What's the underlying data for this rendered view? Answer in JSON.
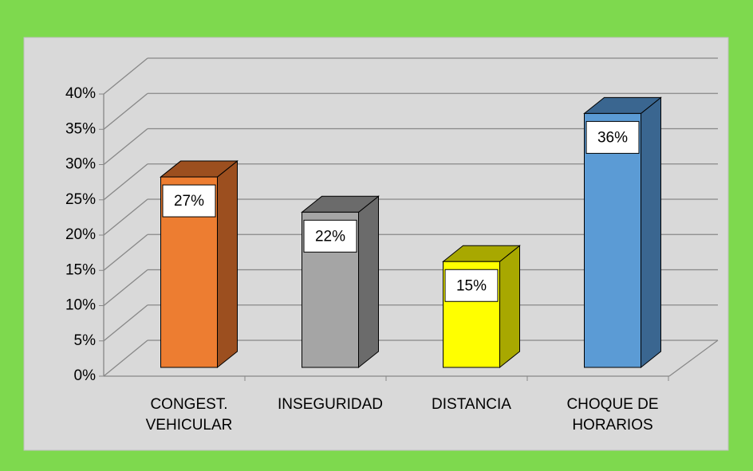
{
  "chart_data": {
    "type": "bar3d",
    "categories": [
      "CONGEST. VEHICULAR",
      "INSEGURIDAD",
      "DISTANCIA",
      "CHOQUE DE HORARIOS"
    ],
    "values": [
      27,
      22,
      15,
      36
    ],
    "value_labels": [
      "27%",
      "22%",
      "15%",
      "36%"
    ],
    "colors": [
      "#ed7d31",
      "#a5a5a5",
      "#ffff00",
      "#5b9bd5"
    ],
    "side_colors": [
      "#9c4f1f",
      "#6b6b6b",
      "#a8a800",
      "#3a6690"
    ],
    "ylim": [
      0,
      40
    ],
    "yticks": [
      {
        "value": 0,
        "label": "0%"
      },
      {
        "value": 5,
        "label": "5%"
      },
      {
        "value": 10,
        "label": "10%"
      },
      {
        "value": 15,
        "label": "15%"
      },
      {
        "value": 20,
        "label": "20%"
      },
      {
        "value": 25,
        "label": "25%"
      },
      {
        "value": 30,
        "label": "30%"
      },
      {
        "value": 35,
        "label": "35%"
      },
      {
        "value": 40,
        "label": "40%"
      }
    ],
    "grid": true
  }
}
